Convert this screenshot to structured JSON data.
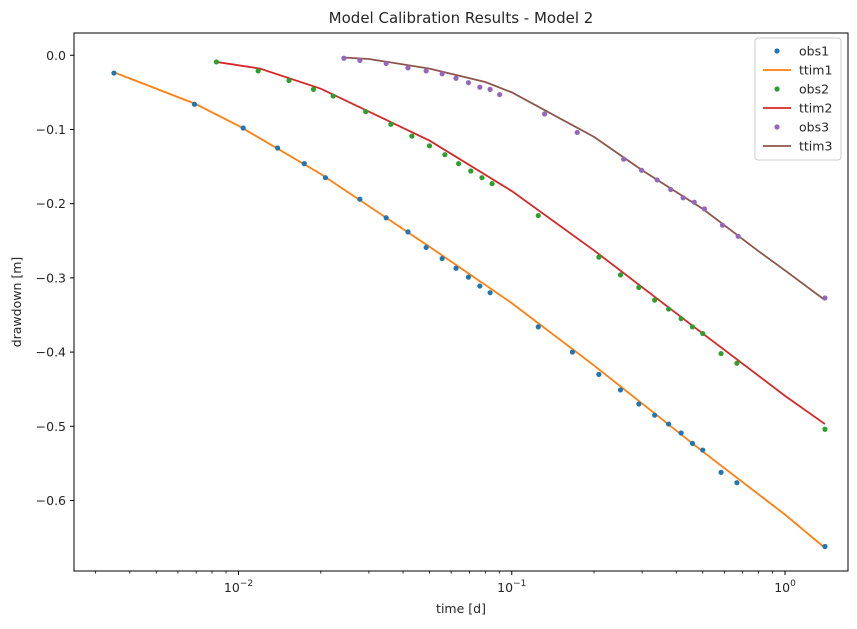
{
  "chart_data": {
    "type": "scatter",
    "title": "Model Calibration Results - Model 2",
    "xlabel": "time [d]",
    "ylabel": "drawdown [m]",
    "xscale": "log",
    "xlim": [
      0.0025,
      1.7
    ],
    "ylim": [
      -0.695,
      0.03
    ],
    "xticks": [
      {
        "value": 0.01,
        "label_base": "10",
        "label_exp": "−2"
      },
      {
        "value": 0.1,
        "label_base": "10",
        "label_exp": "−1"
      },
      {
        "value": 1,
        "label_base": "10",
        "label_exp": "0"
      }
    ],
    "yticks": [
      {
        "value": 0.0,
        "label": "0.0"
      },
      {
        "value": -0.1,
        "label": "−0.1"
      },
      {
        "value": -0.2,
        "label": "−0.2"
      },
      {
        "value": -0.3,
        "label": "−0.3"
      },
      {
        "value": -0.4,
        "label": "−0.4"
      },
      {
        "value": -0.5,
        "label": "−0.5"
      },
      {
        "value": -0.6,
        "label": "−0.6"
      }
    ],
    "grid": false,
    "legend_position": "top-right",
    "series": [
      {
        "name": "obs1",
        "kind": "scatter",
        "color": "#1f77b4",
        "x": [
          0.0035,
          0.0069,
          0.0104,
          0.0139,
          0.0174,
          0.0208,
          0.0278,
          0.0347,
          0.0417,
          0.0486,
          0.0556,
          0.0625,
          0.0694,
          0.0764,
          0.0833,
          0.125,
          0.1667,
          0.2083,
          0.25,
          0.2917,
          0.3333,
          0.375,
          0.4167,
          0.4583,
          0.5,
          0.5833,
          0.6667,
          1.4
        ],
        "y": [
          -0.024,
          -0.066,
          -0.098,
          -0.125,
          -0.146,
          -0.165,
          -0.194,
          -0.219,
          -0.238,
          -0.259,
          -0.274,
          -0.287,
          -0.299,
          -0.311,
          -0.32,
          -0.366,
          -0.4,
          -0.43,
          -0.451,
          -0.47,
          -0.485,
          -0.497,
          -0.509,
          -0.523,
          -0.532,
          -0.562,
          -0.576,
          -0.662
        ]
      },
      {
        "name": "ttim1",
        "kind": "line",
        "color": "#ff7f0e",
        "x": [
          0.0035,
          0.0069,
          0.01,
          0.02,
          0.05,
          0.1,
          0.2,
          0.5,
          1.0,
          1.4
        ],
        "y": [
          -0.023,
          -0.065,
          -0.095,
          -0.16,
          -0.258,
          -0.334,
          -0.418,
          -0.534,
          -0.619,
          -0.664
        ]
      },
      {
        "name": "obs2",
        "kind": "scatter",
        "color": "#2ca02c",
        "x": [
          0.0083,
          0.0118,
          0.0153,
          0.0188,
          0.0222,
          0.0292,
          0.0361,
          0.0431,
          0.05,
          0.0569,
          0.0639,
          0.0708,
          0.0778,
          0.0847,
          0.125,
          0.2083,
          0.25,
          0.2917,
          0.3333,
          0.375,
          0.4167,
          0.4583,
          0.5,
          0.5833,
          0.6667,
          1.4
        ],
        "y": [
          -0.009,
          -0.021,
          -0.034,
          -0.046,
          -0.055,
          -0.076,
          -0.093,
          -0.109,
          -0.122,
          -0.134,
          -0.146,
          -0.156,
          -0.165,
          -0.173,
          -0.216,
          -0.272,
          -0.296,
          -0.313,
          -0.33,
          -0.342,
          -0.355,
          -0.366,
          -0.375,
          -0.402,
          -0.415,
          -0.504
        ]
      },
      {
        "name": "ttim2",
        "kind": "line",
        "color": "#d62728",
        "x": [
          0.0083,
          0.012,
          0.02,
          0.05,
          0.1,
          0.2,
          0.5,
          1.0,
          1.4
        ],
        "y": [
          -0.009,
          -0.018,
          -0.045,
          -0.115,
          -0.183,
          -0.263,
          -0.375,
          -0.459,
          -0.497
        ]
      },
      {
        "name": "obs3",
        "kind": "scatter",
        "color": "#9467bd",
        "x": [
          0.0243,
          0.0278,
          0.0347,
          0.0417,
          0.0486,
          0.0556,
          0.0625,
          0.0694,
          0.0764,
          0.0833,
          0.0903,
          0.1319,
          0.1736,
          0.2569,
          0.2986,
          0.3403,
          0.3819,
          0.4236,
          0.4653,
          0.5069,
          0.5903,
          0.6736,
          1.4
        ],
        "y": [
          -0.004,
          -0.007,
          -0.011,
          -0.017,
          -0.021,
          -0.025,
          -0.031,
          -0.037,
          -0.043,
          -0.046,
          -0.053,
          -0.079,
          -0.104,
          -0.14,
          -0.155,
          -0.168,
          -0.181,
          -0.192,
          -0.198,
          -0.207,
          -0.229,
          -0.244,
          -0.327
        ]
      },
      {
        "name": "ttim3",
        "kind": "line",
        "color": "#8c564b",
        "x": [
          0.0243,
          0.03,
          0.05,
          0.08,
          0.1,
          0.2,
          0.3,
          0.5,
          0.8,
          1.0,
          1.4
        ],
        "y": [
          -0.003,
          -0.005,
          -0.018,
          -0.036,
          -0.05,
          -0.11,
          -0.155,
          -0.207,
          -0.264,
          -0.29,
          -0.33
        ]
      }
    ]
  }
}
